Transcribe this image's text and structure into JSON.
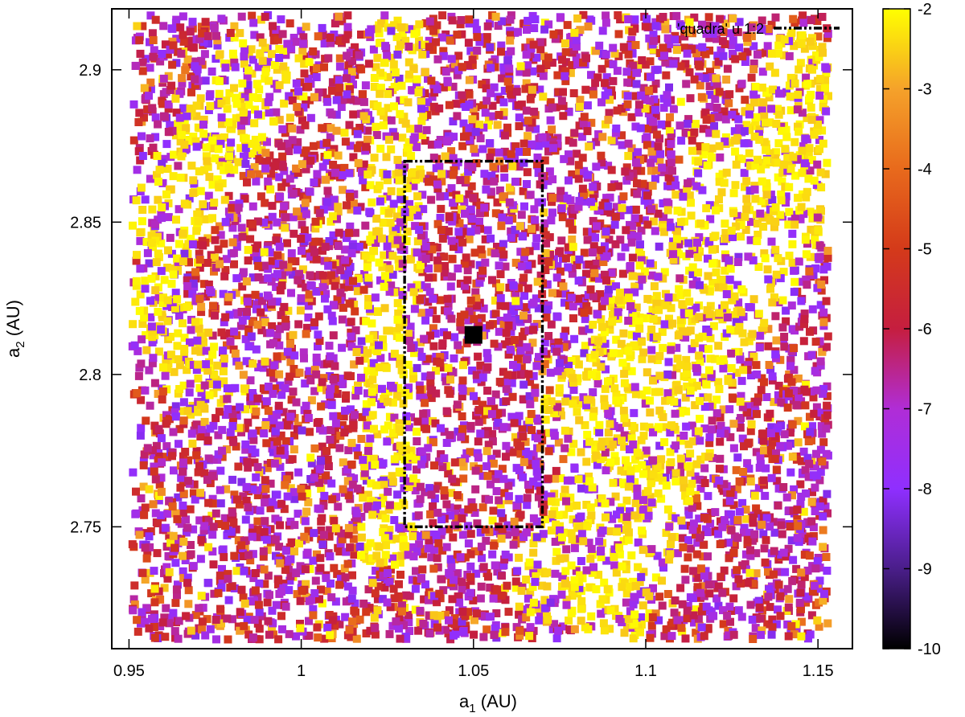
{
  "chart_data": {
    "type": "heatmap",
    "xlabel": {
      "base": "a",
      "sub": "1",
      "rest": " (AU)"
    },
    "ylabel": {
      "base": "a",
      "sub": "2",
      "rest": " (AU)"
    },
    "xlim": [
      0.945,
      1.16
    ],
    "ylim": [
      2.71,
      2.92
    ],
    "x_ticks": [
      {
        "value": 0.95,
        "label": "0.95"
      },
      {
        "value": 1.0,
        "label": "1"
      },
      {
        "value": 1.05,
        "label": "1.05"
      },
      {
        "value": 1.1,
        "label": "1.1"
      },
      {
        "value": 1.15,
        "label": "1.15"
      }
    ],
    "y_ticks": [
      {
        "value": 2.75,
        "label": "2.75"
      },
      {
        "value": 2.8,
        "label": "2.8"
      },
      {
        "value": 2.85,
        "label": "2.85"
      },
      {
        "value": 2.9,
        "label": "2.9"
      }
    ],
    "grid": false,
    "scatter_domain": {
      "x": [
        0.951,
        1.153
      ],
      "y": [
        2.713,
        2.918
      ]
    },
    "colorbar": {
      "range": [
        -10,
        -2
      ],
      "ticks": [
        "-2",
        "-3",
        "-4",
        "-5",
        "-6",
        "-7",
        "-8",
        "-9",
        "-10"
      ],
      "stops": [
        {
          "value": -10,
          "color": "#000000"
        },
        {
          "value": -9,
          "color": "#4a1e8a"
        },
        {
          "value": -8,
          "color": "#8f2fff"
        },
        {
          "value": -7,
          "color": "#b02dd6"
        },
        {
          "value": -6,
          "color": "#c51e3f"
        },
        {
          "value": -5,
          "color": "#d43a1a"
        },
        {
          "value": -4,
          "color": "#e86a1c"
        },
        {
          "value": -3,
          "color": "#f5a22a"
        },
        {
          "value": -2,
          "color": "#ffff00"
        }
      ]
    },
    "high_value_bands": [
      {
        "x0": 0.955,
        "y0": 2.84,
        "x1": 0.99,
        "y1": 2.905,
        "width": 0.012
      },
      {
        "x0": 0.953,
        "y0": 2.83,
        "x1": 0.975,
        "y1": 2.79,
        "width": 0.01
      },
      {
        "x0": 1.025,
        "y0": 2.745,
        "x1": 1.028,
        "y1": 2.91,
        "width": 0.008
      },
      {
        "x0": 1.08,
        "y0": 2.72,
        "x1": 1.1,
        "y1": 2.78,
        "width": 0.02
      },
      {
        "x0": 1.09,
        "y0": 2.78,
        "x1": 1.14,
        "y1": 2.87,
        "width": 0.022
      },
      {
        "x0": 1.12,
        "y0": 2.83,
        "x1": 1.152,
        "y1": 2.905,
        "width": 0.015
      }
    ],
    "rectangle": {
      "legend_label": "'quadra' u 1:2",
      "x": [
        1.03,
        1.07
      ],
      "y": [
        2.75,
        2.87
      ],
      "color": "#000000"
    },
    "center_marker": {
      "x": 1.05,
      "y": 2.813,
      "color": "#000000"
    }
  }
}
